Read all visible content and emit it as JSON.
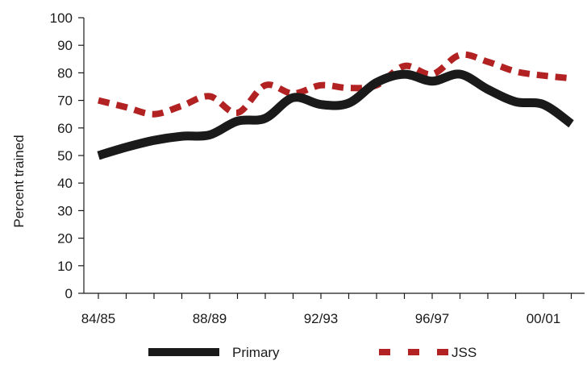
{
  "chart_data": {
    "type": "line",
    "title": "",
    "xlabel": "",
    "ylabel": "Percent trained",
    "ylim": [
      0,
      100
    ],
    "yticks": [
      0,
      10,
      20,
      30,
      40,
      50,
      60,
      70,
      80,
      90,
      100
    ],
    "xticks": [
      "84/85",
      "88/89",
      "92/93",
      "96/97",
      "00/01"
    ],
    "categories": [
      "84/85",
      "85/86",
      "86/87",
      "87/88",
      "88/89",
      "89/90",
      "90/91",
      "91/92",
      "92/93",
      "93/94",
      "94/95",
      "95/96",
      "96/97",
      "97/98",
      "98/99",
      "99/00",
      "00/01",
      "01/02"
    ],
    "grid": false,
    "legend": "bottom",
    "series": [
      {
        "name": "Primary",
        "color": "#1a1a1a",
        "style": "solid",
        "values": [
          50,
          53,
          55.5,
          57,
          57.5,
          62.5,
          63.5,
          71,
          68.5,
          69,
          76.5,
          79.5,
          77,
          79.5,
          74,
          69.5,
          68.5,
          61.5
        ]
      },
      {
        "name": "JSS",
        "color": "#b22222",
        "style": "dashed",
        "values": [
          70,
          67.5,
          65,
          68,
          71.5,
          65.5,
          75.5,
          72.5,
          75.5,
          74.5,
          75.5,
          82.5,
          79.5,
          86.5,
          84,
          80.5,
          79,
          78
        ]
      }
    ]
  }
}
